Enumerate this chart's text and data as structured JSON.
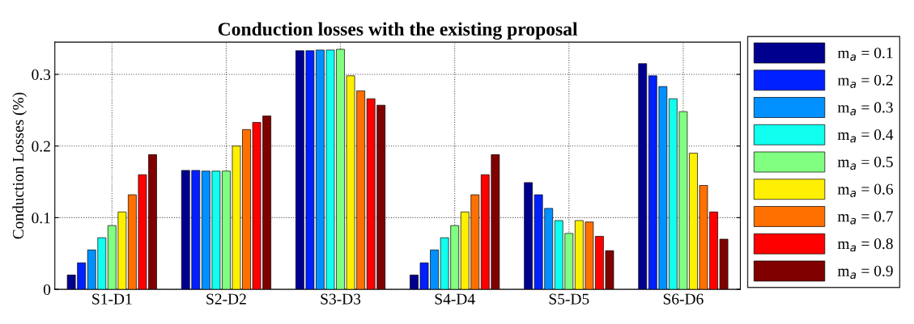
{
  "chart_data": {
    "type": "bar",
    "title": "Conduction losses with the existing proposal",
    "ylabel": "Conduction Losses (%)",
    "categories": [
      "S1-D1",
      "S2-D2",
      "S3-D3",
      "S4-D4",
      "S5-D5",
      "S6-D6"
    ],
    "series": [
      {
        "name": "m$_{a}$ = 0.1",
        "color": "#00008f",
        "values": [
          0.02,
          0.166,
          0.333,
          0.02,
          0.149,
          0.315
        ]
      },
      {
        "name": "m$_{a}$ = 0.2",
        "color": "#0020ff",
        "values": [
          0.037,
          0.166,
          0.333,
          0.037,
          0.132,
          0.298
        ]
      },
      {
        "name": "m$_{a}$ = 0.3",
        "color": "#0090ff",
        "values": [
          0.055,
          0.165,
          0.334,
          0.055,
          0.113,
          0.283
        ]
      },
      {
        "name": "m$_{a}$ = 0.4",
        "color": "#10ffef",
        "values": [
          0.072,
          0.165,
          0.334,
          0.072,
          0.096,
          0.266
        ]
      },
      {
        "name": "m$_{a}$ = 0.5",
        "color": "#80ff80",
        "values": [
          0.089,
          0.165,
          0.335,
          0.089,
          0.078,
          0.248
        ]
      },
      {
        "name": "m$_{a}$ = 0.6",
        "color": "#ffef00",
        "values": [
          0.108,
          0.2,
          0.298,
          0.108,
          0.096,
          0.19
        ]
      },
      {
        "name": "m$_{a}$ = 0.7",
        "color": "#ff7000",
        "values": [
          0.132,
          0.223,
          0.277,
          0.132,
          0.094,
          0.145
        ]
      },
      {
        "name": "m$_{a}$ = 0.8",
        "color": "#ff0000",
        "values": [
          0.16,
          0.233,
          0.266,
          0.16,
          0.074,
          0.108
        ]
      },
      {
        "name": "m$_{a}$ = 0.9",
        "color": "#800000",
        "values": [
          0.188,
          0.242,
          0.257,
          0.188,
          0.054,
          0.07
        ]
      }
    ],
    "ylim": [
      0,
      0.345
    ],
    "yticks": [
      0,
      0.1,
      0.2,
      0.3
    ],
    "grid": true,
    "legend": "right"
  }
}
